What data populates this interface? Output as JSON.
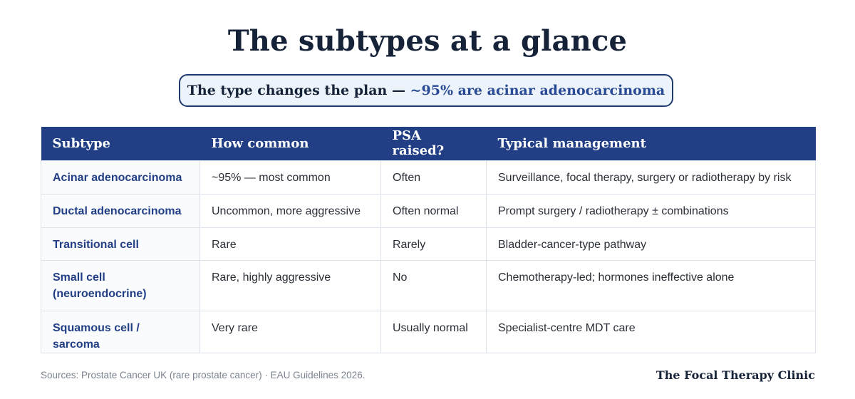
{
  "title": "The subtypes at a glance",
  "callout": {
    "prefix": "The type changes the plan — ",
    "highlight": "~95% are acinar adenocarcinoma"
  },
  "table": {
    "headers": [
      "Subtype",
      "How common",
      "PSA raised?",
      "Typical management"
    ],
    "rows": [
      {
        "subtype": "Acinar adenocarcinoma",
        "common": "~95% — most common",
        "psa": "Often",
        "management": "Surveillance, focal therapy, surgery or radiotherapy by risk"
      },
      {
        "subtype": "Ductal adenocarcinoma",
        "common": "Uncommon, more aggressive",
        "psa": "Often normal",
        "management": "Prompt surgery / radiotherapy ± combinations"
      },
      {
        "subtype": "Transitional cell",
        "common": "Rare",
        "psa": "Rarely",
        "management": "Bladder-cancer-type pathway"
      },
      {
        "subtype": "Small cell (neuroendocrine)",
        "common": "Rare, highly aggressive",
        "psa": "No",
        "management": "Chemotherapy-led; hormones ineffective alone"
      },
      {
        "subtype": "Squamous cell / sarcoma",
        "common": "Very rare",
        "psa": "Usually normal",
        "management": "Specialist-centre MDT care"
      }
    ]
  },
  "footer": {
    "sources": "Sources: Prostate Cancer UK (rare prostate cancer) · EAU Guidelines 2026.",
    "brand": "The Focal Therapy Clinic"
  },
  "colors": {
    "header_bg": "#223f86",
    "title": "#152238",
    "accent": "#284a94",
    "callout_bg": "#edf3fa"
  }
}
